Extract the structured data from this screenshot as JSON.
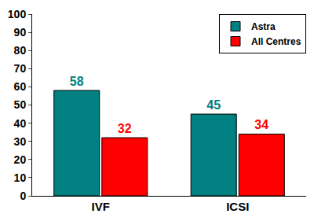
{
  "chart_data": {
    "type": "bar",
    "categories": [
      "IVF",
      "ICSI"
    ],
    "series": [
      {
        "name": "Astra",
        "color": "#008080",
        "values": [
          58,
          45
        ]
      },
      {
        "name": "All Centres",
        "color": "#ff0000",
        "values": [
          32,
          34
        ]
      }
    ],
    "ylim": [
      0,
      100
    ],
    "yticks": [
      0,
      10,
      20,
      30,
      40,
      50,
      60,
      70,
      80,
      90,
      100
    ],
    "grid": false,
    "legend": "top right",
    "data_labels": true
  }
}
